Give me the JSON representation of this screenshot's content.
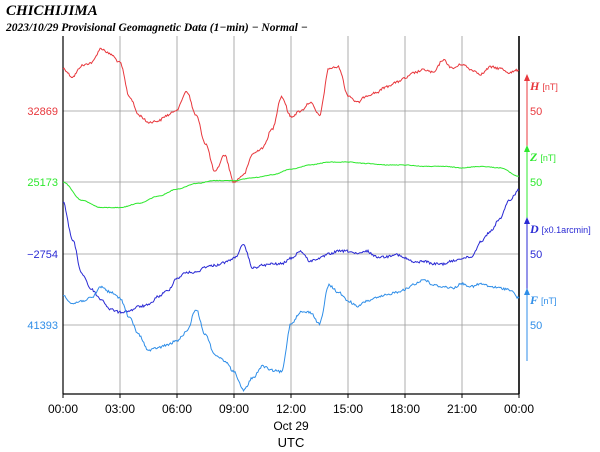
{
  "chart_data": {
    "type": "line",
    "title": "CHICHIJIMA",
    "subtitle": "2023/10/29  Provisional Geomagnetic Data (1−min)  − Normal −",
    "xlabel": "UTC",
    "x_date_label": "Oct 29",
    "x_ticks": [
      "00:00",
      "03:00",
      "06:00",
      "09:00",
      "12:00",
      "15:00",
      "18:00",
      "21:00",
      "00:00"
    ],
    "x_range_hours": [
      0,
      24
    ],
    "grid": true,
    "series": [
      {
        "name": "H",
        "unit": "[nT]",
        "color": "#e8383d",
        "left_label": "32869",
        "right_tick": "50",
        "scale_nt_per_div": 50,
        "left_level": 32869,
        "x": [
          0,
          0.5,
          1,
          1.5,
          2,
          2.5,
          3,
          3.5,
          4,
          4.5,
          5,
          5.5,
          6,
          6.5,
          7,
          7.5,
          8,
          8.5,
          9,
          9.5,
          10,
          10.5,
          11,
          11.5,
          12,
          12.5,
          13,
          13.5,
          14,
          14.5,
          15,
          15.5,
          16,
          16.5,
          17,
          17.5,
          18,
          18.5,
          19,
          19.5,
          20,
          20.5,
          21,
          21.5,
          22,
          22.5,
          23,
          23.5,
          24
        ],
        "values": [
          32899,
          32893,
          32901,
          32903,
          32913,
          32909,
          32903,
          32879,
          32866,
          32861,
          32862,
          32866,
          32870,
          32883,
          32866,
          32846,
          32826,
          32838,
          32819,
          32824,
          32839,
          32843,
          32856,
          32879,
          32865,
          32869,
          32875,
          32866,
          32899,
          32900,
          32880,
          32875,
          32880,
          32882,
          32886,
          32889,
          32892,
          32896,
          32898,
          32896,
          32905,
          32899,
          32902,
          32898,
          32895,
          32900,
          32899,
          32896,
          32898
        ]
      },
      {
        "name": "Z",
        "unit": "[nT]",
        "color": "#2ee82e",
        "left_label": "25173",
        "right_tick": "50",
        "scale_nt_per_div": 50,
        "left_level": 25173,
        "x": [
          0,
          1,
          2,
          3,
          4,
          5,
          6,
          7,
          8,
          9,
          10,
          11,
          12,
          13,
          14,
          15,
          16,
          17,
          18,
          19,
          20,
          21,
          22,
          23,
          24
        ],
        "values": [
          25173,
          25160,
          25155,
          25155,
          25158,
          25163,
          25168,
          25172,
          25174,
          25174,
          25176,
          25178,
          25182,
          25185,
          25187,
          25187,
          25186,
          25185,
          25185,
          25184,
          25184,
          25183,
          25184,
          25183,
          25177
        ]
      },
      {
        "name": "D",
        "unit": "[x0.1arcmin]",
        "color": "#2a2ad4",
        "left_label": "−2754",
        "right_tick": "50",
        "scale_units_per_div": 50,
        "left_level": -2754,
        "x": [
          0,
          0.5,
          1,
          1.5,
          2,
          2.5,
          3,
          3.5,
          4,
          4.5,
          5,
          5.5,
          6,
          6.5,
          7,
          7.5,
          8,
          8.5,
          9,
          9.5,
          10,
          10.5,
          11,
          11.5,
          12,
          12.5,
          13,
          13.5,
          14,
          14.5,
          15,
          15.5,
          16,
          16.5,
          17,
          17.5,
          18,
          18.5,
          19,
          19.5,
          20,
          20.5,
          21,
          21.5,
          22,
          22.5,
          23,
          23.5,
          24
        ],
        "values": [
          -2717,
          -2744,
          -2768,
          -2779,
          -2786,
          -2793,
          -2795,
          -2794,
          -2791,
          -2790,
          -2784,
          -2780,
          -2771,
          -2767,
          -2767,
          -2763,
          -2762,
          -2760,
          -2757,
          -2748,
          -2764,
          -2762,
          -2761,
          -2761,
          -2757,
          -2752,
          -2759,
          -2757,
          -2754,
          -2752,
          -2752,
          -2754,
          -2752,
          -2756,
          -2756,
          -2754,
          -2757,
          -2760,
          -2759,
          -2761,
          -2761,
          -2759,
          -2757,
          -2756,
          -2745,
          -2738,
          -2729,
          -2716,
          -2709
        ]
      },
      {
        "name": "F",
        "unit": "[nT]",
        "color": "#2f8ee8",
        "left_label": "41393",
        "right_tick": "50",
        "scale_nt_per_div": 50,
        "left_level": 41393,
        "x": [
          0,
          0.5,
          1,
          1.5,
          2,
          2.5,
          3,
          3.5,
          4,
          4.5,
          5,
          5.5,
          6,
          6.5,
          7,
          7.5,
          8,
          8.5,
          9,
          9.5,
          10,
          10.5,
          11,
          11.5,
          12,
          12.5,
          13,
          13.5,
          14,
          14.5,
          15,
          15.5,
          16,
          16.5,
          17,
          17.5,
          18,
          18.5,
          19,
          19.5,
          20,
          20.5,
          21,
          21.5,
          22,
          22.5,
          23,
          23.5,
          24
        ],
        "values": [
          41414,
          41408,
          41410,
          41412,
          41420,
          41416,
          41412,
          41398,
          41386,
          41375,
          41377,
          41379,
          41382,
          41388,
          41404,
          41386,
          41372,
          41368,
          41360,
          41347,
          41356,
          41364,
          41361,
          41360,
          41394,
          41402,
          41402,
          41394,
          41421,
          41416,
          41410,
          41406,
          41410,
          41412,
          41414,
          41416,
          41418,
          41422,
          41425,
          41421,
          41420,
          41419,
          41422,
          41420,
          41422,
          41420,
          41419,
          41418,
          41412
        ]
      }
    ]
  }
}
